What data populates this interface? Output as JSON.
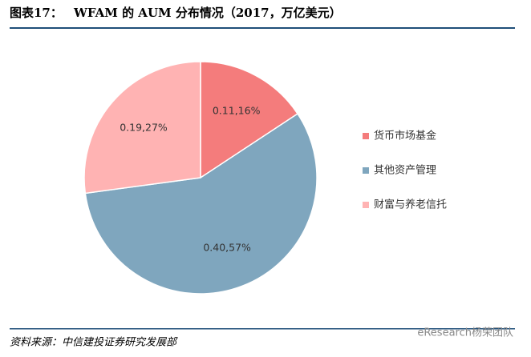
{
  "chart_data": {
    "type": "pie",
    "figure_label": "图表17：",
    "title": "WFAM 的 AUM 分布情况（2017，万亿美元）",
    "categories": [
      "货币市场基金",
      "其他资产管理",
      "财富与养老信托"
    ],
    "values": [
      0.11,
      0.4,
      0.19
    ],
    "value_labels": [
      "0.11,16%",
      "0.40,57%",
      "0.19,27%"
    ],
    "colors": [
      "#f47c7c",
      "#7fa6be",
      "#ffb3b3"
    ],
    "legend": "right",
    "source": "资料来源：中信建投证券研究发展部",
    "watermark": "eResearch杨荣团队"
  }
}
